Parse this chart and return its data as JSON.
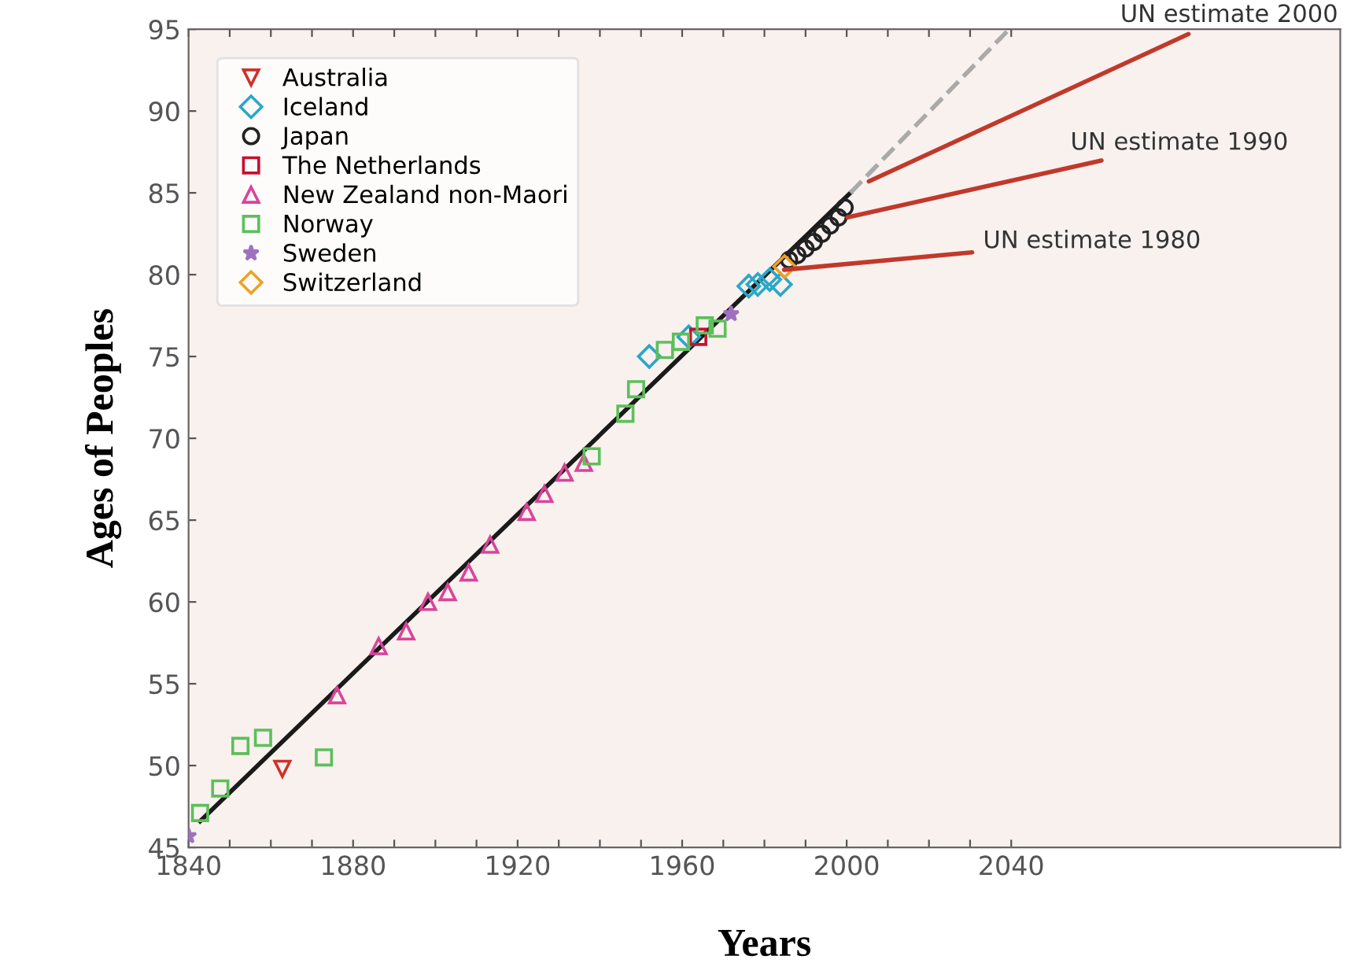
{
  "chart_data": {
    "type": "scatter",
    "xlabel": "Years",
    "ylabel": "Ages of Peoples",
    "xlim": [
      1840,
      2120
    ],
    "ylim": [
      45,
      95
    ],
    "xticks": [
      1840,
      {
        "value": 1850,
        "label": null
      },
      {
        "value": 1860,
        "label": null
      },
      {
        "value": 1870,
        "label": null
      },
      1880,
      {
        "value": 1890,
        "label": null
      },
      {
        "value": 1900,
        "label": null
      },
      {
        "value": 1910,
        "label": null
      },
      1920,
      {
        "value": 1930,
        "label": null
      },
      {
        "value": 1940,
        "label": null
      },
      {
        "value": 1950,
        "label": null
      },
      1960,
      {
        "value": 1970,
        "label": null
      },
      {
        "value": 1980,
        "label": null
      },
      {
        "value": 1990,
        "label": null
      },
      2000,
      {
        "value": 2010,
        "label": null
      },
      {
        "value": 2020,
        "label": null
      },
      {
        "value": 2030,
        "label": null
      },
      2040
    ],
    "yticks": [
      45,
      50,
      55,
      60,
      65,
      70,
      75,
      80,
      85,
      90,
      95
    ],
    "grid": false,
    "legend": "top left",
    "series": [
      {
        "name": "Australia",
        "color": "#d0302a",
        "marker": "triangle_down",
        "x": [
          1862.8
        ],
        "values": [
          49.8
        ]
      },
      {
        "name": "Iceland",
        "color": "#2aa7c9",
        "marker": "diamond",
        "x": [
          1952,
          1961.6,
          1976.2,
          1978.4,
          1981.3,
          1983.9
        ],
        "values": [
          75.0,
          76.2,
          79.3,
          79.4,
          79.7,
          79.4
        ]
      },
      {
        "name": "Japan",
        "color": "#222222",
        "marker": "circle",
        "x": [
          1986,
          1988,
          1990,
          1992,
          1994,
          1996,
          1998,
          1999.5
        ],
        "values": [
          80.9,
          81.2,
          81.6,
          82.0,
          82.5,
          83.0,
          83.5,
          84.1
        ]
      },
      {
        "name": "The Netherlands",
        "color": "#c8102e",
        "marker": "square",
        "x": [
          1963.9
        ],
        "values": [
          76.2
        ]
      },
      {
        "name": "New Zealand non-Maori",
        "color": "#d9449a",
        "marker": "triangle",
        "x": [
          1876.1,
          1886.2,
          1892.9,
          1898.2,
          1903,
          1908.1,
          1913.3,
          1922.2,
          1926.5,
          1931.4,
          1936.1
        ],
        "values": [
          54.3,
          57.3,
          58.2,
          60.0,
          60.6,
          61.8,
          63.5,
          65.5,
          66.6,
          67.9,
          68.5
        ]
      },
      {
        "name": "Norway",
        "color": "#5cc05a",
        "marker": "square",
        "x": [
          1842.8,
          1847.7,
          1852.6,
          1858.1,
          1872.9,
          1938,
          1946.2,
          1948.8,
          1955.8,
          1959.7,
          1965.5,
          1968.6
        ],
        "values": [
          47.1,
          48.6,
          51.2,
          51.7,
          50.5,
          68.9,
          71.5,
          73.0,
          75.4,
          75.9,
          76.9,
          76.7
        ]
      },
      {
        "name": "Sweden",
        "color": "#a070c0",
        "marker": "star",
        "x": [
          1840,
          1971.9
        ],
        "values": [
          45.7,
          77.6
        ]
      },
      {
        "name": "Switzerland",
        "color": "#f0a020",
        "marker": "diamond",
        "x": [
          1984.9
        ],
        "values": [
          80.5
        ]
      },
      {
        "type": "line",
        "color": "#1a1a1a",
        "line_style": "solid",
        "x": [
          1842.8,
          2000.9
        ],
        "values": [
          46.6,
          85.0
        ]
      },
      {
        "type": "line",
        "color": "#aaaaaa",
        "line_style": "dashed",
        "x": [
          2000.9,
          2039.5
        ],
        "values": [
          85.0,
          95.0
        ]
      }
    ],
    "annotations": [
      {
        "text": "UN estimate 2000",
        "x": 2005.4,
        "y": 85.7
      },
      {
        "text": "UN estimate 1990",
        "x": 2000.2,
        "y": 83.5
      },
      {
        "text": "UN estimate 1980",
        "x": 1984.8,
        "y": 80.3
      }
    ]
  }
}
